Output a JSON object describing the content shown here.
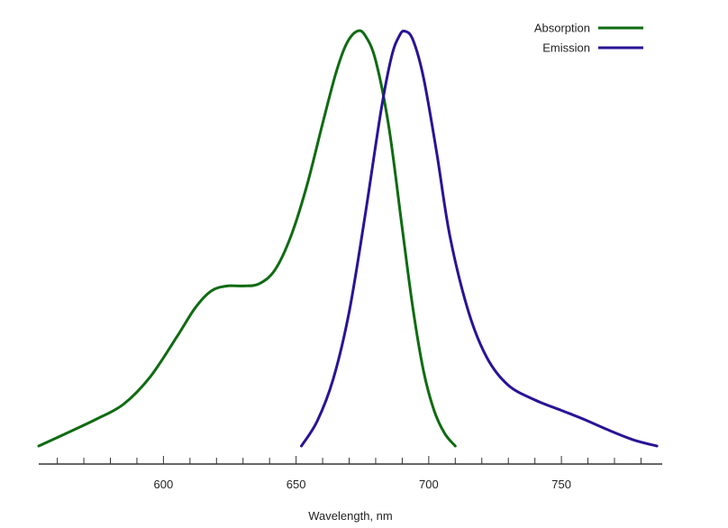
{
  "chart_data": {
    "type": "line",
    "title": "",
    "xlabel": "Wavelength, nm",
    "ylabel": "",
    "xlim": [
      553,
      788
    ],
    "ylim": [
      0,
      1.0
    ],
    "x_ticks": [
      600,
      650,
      700,
      750
    ],
    "x_minor_step": 10,
    "grid": false,
    "legend": "top-right",
    "series": [
      {
        "name": "Absorption",
        "color": "#0f6b12",
        "points": [
          [
            553,
            0.0
          ],
          [
            565,
            0.035
          ],
          [
            575,
            0.065
          ],
          [
            585,
            0.1
          ],
          [
            595,
            0.165
          ],
          [
            605,
            0.26
          ],
          [
            612,
            0.33
          ],
          [
            618,
            0.37
          ],
          [
            624,
            0.382
          ],
          [
            630,
            0.382
          ],
          [
            636,
            0.387
          ],
          [
            642,
            0.42
          ],
          [
            648,
            0.5
          ],
          [
            654,
            0.62
          ],
          [
            660,
            0.77
          ],
          [
            665,
            0.89
          ],
          [
            669,
            0.96
          ],
          [
            673,
            0.99
          ],
          [
            676,
            0.98
          ],
          [
            680,
            0.92
          ],
          [
            685,
            0.76
          ],
          [
            690,
            0.52
          ],
          [
            694,
            0.33
          ],
          [
            698,
            0.18
          ],
          [
            702,
            0.085
          ],
          [
            706,
            0.03
          ],
          [
            710,
            0.0
          ]
        ]
      },
      {
        "name": "Emission",
        "color": "#2a1396",
        "points": [
          [
            652,
            0.0
          ],
          [
            658,
            0.06
          ],
          [
            664,
            0.16
          ],
          [
            670,
            0.32
          ],
          [
            676,
            0.55
          ],
          [
            682,
            0.8
          ],
          [
            686,
            0.93
          ],
          [
            689,
            0.98
          ],
          [
            691,
            0.99
          ],
          [
            694,
            0.97
          ],
          [
            698,
            0.88
          ],
          [
            703,
            0.7
          ],
          [
            708,
            0.5
          ],
          [
            715,
            0.32
          ],
          [
            722,
            0.21
          ],
          [
            730,
            0.145
          ],
          [
            740,
            0.11
          ],
          [
            750,
            0.085
          ],
          [
            758,
            0.065
          ],
          [
            767,
            0.04
          ],
          [
            777,
            0.015
          ],
          [
            786,
            0.0
          ]
        ]
      }
    ]
  }
}
